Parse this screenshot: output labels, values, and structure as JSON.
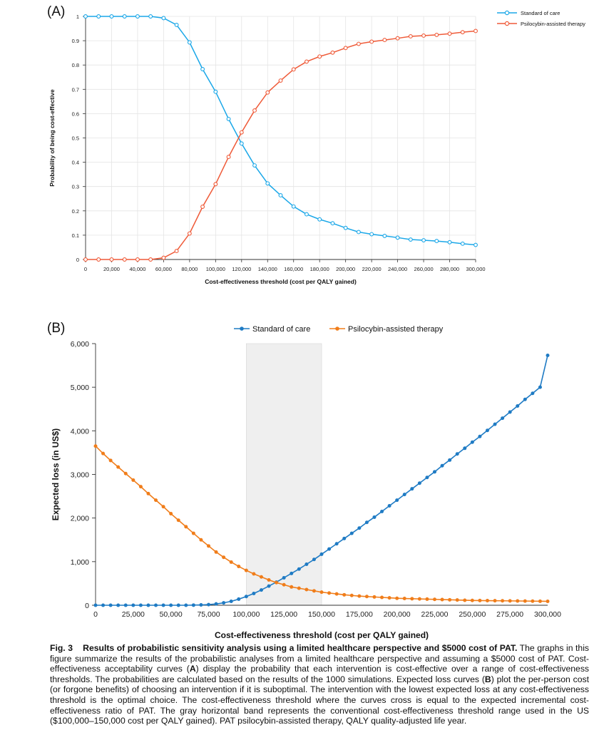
{
  "panel_a": {
    "label": "(A)",
    "legend": [
      "Standard of care",
      "Psilocybin-assisted therapy"
    ]
  },
  "panel_b": {
    "label": "(B)",
    "legend": [
      "Standard of care",
      "Psilocybin-assisted therapy"
    ]
  },
  "caption": {
    "fig": "Fig. 3",
    "title": "Results of probabilistic sensitivity analysis using a limited healthcare perspective and $5000 cost of PAT.",
    "body_1": " The graphs in this figure summarize the results of the probabilistic analyses from a limited healthcare perspective and assuming a $5000 cost of PAT. Cost-effectiveness acceptability curves (",
    "bold_a": "A",
    "body_2": ") display the probability that each intervention is cost-effective over a range of cost-effectiveness thresholds. The probabilities are calculated based on the results of the 1000 simulations. Expected loss curves (",
    "bold_b": "B",
    "body_3": ") plot the per-person cost (or forgone benefits) of choosing an intervention if it is suboptimal. The intervention with the lowest expected loss at any cost-effectiveness threshold is the optimal choice. The cost-effectiveness threshold where the curves cross is equal to the expected incremental cost-effectiveness ratio of PAT. The gray horizontal band represents the conventional cost-effectiveness threshold range used in the US ($100,000–150,000 cost per QALY gained). PAT psilocybin-assisted therapy, QALY quality-adjusted life year."
  },
  "chart_data": [
    {
      "type": "line",
      "xlabel": "Cost-effectiveness threshold (cost per QALY gained)",
      "ylabel": "Probability of being cost-effective",
      "xlim": [
        0,
        300000
      ],
      "ylim": [
        0,
        1
      ],
      "x_ticks": [
        "0",
        "20,000",
        "40,000",
        "60,000",
        "80,000",
        "100,000",
        "120,000",
        "140,000",
        "160,000",
        "180,000",
        "200,000",
        "220,000",
        "240,000",
        "260,000",
        "280,000",
        "300,000"
      ],
      "y_ticks": [
        "0",
        "0.1",
        "0.2",
        "0.3",
        "0.4",
        "0.5",
        "0.6",
        "0.7",
        "0.8",
        "0.9",
        "1"
      ],
      "grid": true,
      "legend_position": "top-right",
      "x": [
        0,
        10000,
        20000,
        30000,
        40000,
        50000,
        60000,
        70000,
        80000,
        90000,
        100000,
        110000,
        120000,
        130000,
        140000,
        150000,
        160000,
        170000,
        180000,
        190000,
        200000,
        210000,
        220000,
        230000,
        240000,
        250000,
        260000,
        270000,
        280000,
        290000,
        300000
      ],
      "series": [
        {
          "name": "Standard of care",
          "color": "#1aa7e8",
          "values": [
            1,
            1,
            1,
            1,
            1,
            1,
            0.993,
            0.965,
            0.893,
            0.783,
            0.69,
            0.578,
            0.477,
            0.387,
            0.313,
            0.264,
            0.218,
            0.186,
            0.165,
            0.149,
            0.13,
            0.113,
            0.104,
            0.097,
            0.09,
            0.082,
            0.079,
            0.076,
            0.071,
            0.065,
            0.06
          ]
        },
        {
          "name": "Psilocybin-assisted therapy",
          "color": "#ef5a38",
          "values": [
            0,
            0,
            0,
            0,
            0,
            0,
            0.007,
            0.035,
            0.107,
            0.217,
            0.31,
            0.422,
            0.523,
            0.613,
            0.687,
            0.736,
            0.782,
            0.814,
            0.835,
            0.851,
            0.87,
            0.887,
            0.896,
            0.903,
            0.91,
            0.918,
            0.921,
            0.924,
            0.929,
            0.935,
            0.94
          ]
        }
      ]
    },
    {
      "type": "line",
      "xlabel": "Cost-effectiveness threshold (cost per QALY gained)",
      "ylabel": "Expected loss (in US$)",
      "xlim": [
        0,
        300000
      ],
      "ylim": [
        0,
        6000
      ],
      "x_ticks": [
        "0",
        "25,000",
        "50,000",
        "75,000",
        "100,000",
        "125,000",
        "150,000",
        "175,000",
        "200,000",
        "225,000",
        "250,000",
        "275,000",
        "300,000"
      ],
      "y_ticks": [
        "0",
        "1,000",
        "2,000",
        "3,000",
        "4,000",
        "5,000",
        "6,000"
      ],
      "grid": false,
      "legend_position": "top",
      "band": {
        "x0": 100000,
        "x1": 150000,
        "color": "#efefef"
      },
      "x": [
        0,
        5000,
        10000,
        15000,
        20000,
        25000,
        30000,
        35000,
        40000,
        45000,
        50000,
        55000,
        60000,
        65000,
        70000,
        75000,
        80000,
        85000,
        90000,
        95000,
        100000,
        105000,
        110000,
        115000,
        120000,
        125000,
        130000,
        135000,
        140000,
        145000,
        150000,
        155000,
        160000,
        165000,
        170000,
        175000,
        180000,
        185000,
        190000,
        195000,
        200000,
        205000,
        210000,
        215000,
        220000,
        225000,
        230000,
        235000,
        240000,
        245000,
        250000,
        255000,
        260000,
        265000,
        270000,
        275000,
        280000,
        285000,
        290000,
        295000,
        300000
      ],
      "series": [
        {
          "name": "Standard of care",
          "color": "#1f7bc4",
          "values": [
            0,
            0,
            0,
            0,
            0,
            0,
            0,
            0,
            0,
            0,
            0,
            0,
            0,
            3,
            8,
            15,
            30,
            55,
            90,
            140,
            200,
            270,
            350,
            440,
            530,
            630,
            730,
            830,
            940,
            1050,
            1170,
            1290,
            1410,
            1530,
            1650,
            1770,
            1900,
            2020,
            2150,
            2280,
            2410,
            2540,
            2670,
            2800,
            2930,
            3060,
            3200,
            3330,
            3470,
            3600,
            3740,
            3870,
            4010,
            4150,
            4290,
            4430,
            4570,
            4720,
            4860,
            5000,
            5730
          ]
        },
        {
          "name": "Psilocybin-assisted therapy",
          "color": "#f07d1a",
          "values": [
            3650,
            3480,
            3320,
            3170,
            3020,
            2870,
            2720,
            2560,
            2410,
            2260,
            2100,
            1950,
            1800,
            1650,
            1500,
            1360,
            1220,
            1100,
            990,
            890,
            800,
            720,
            650,
            580,
            520,
            470,
            420,
            390,
            360,
            330,
            300,
            280,
            260,
            240,
            225,
            210,
            200,
            190,
            180,
            170,
            160,
            155,
            150,
            145,
            140,
            135,
            130,
            125,
            120,
            115,
            110,
            108,
            106,
            104,
            102,
            100,
            98,
            96,
            94,
            92,
            90
          ]
        }
      ]
    }
  ]
}
